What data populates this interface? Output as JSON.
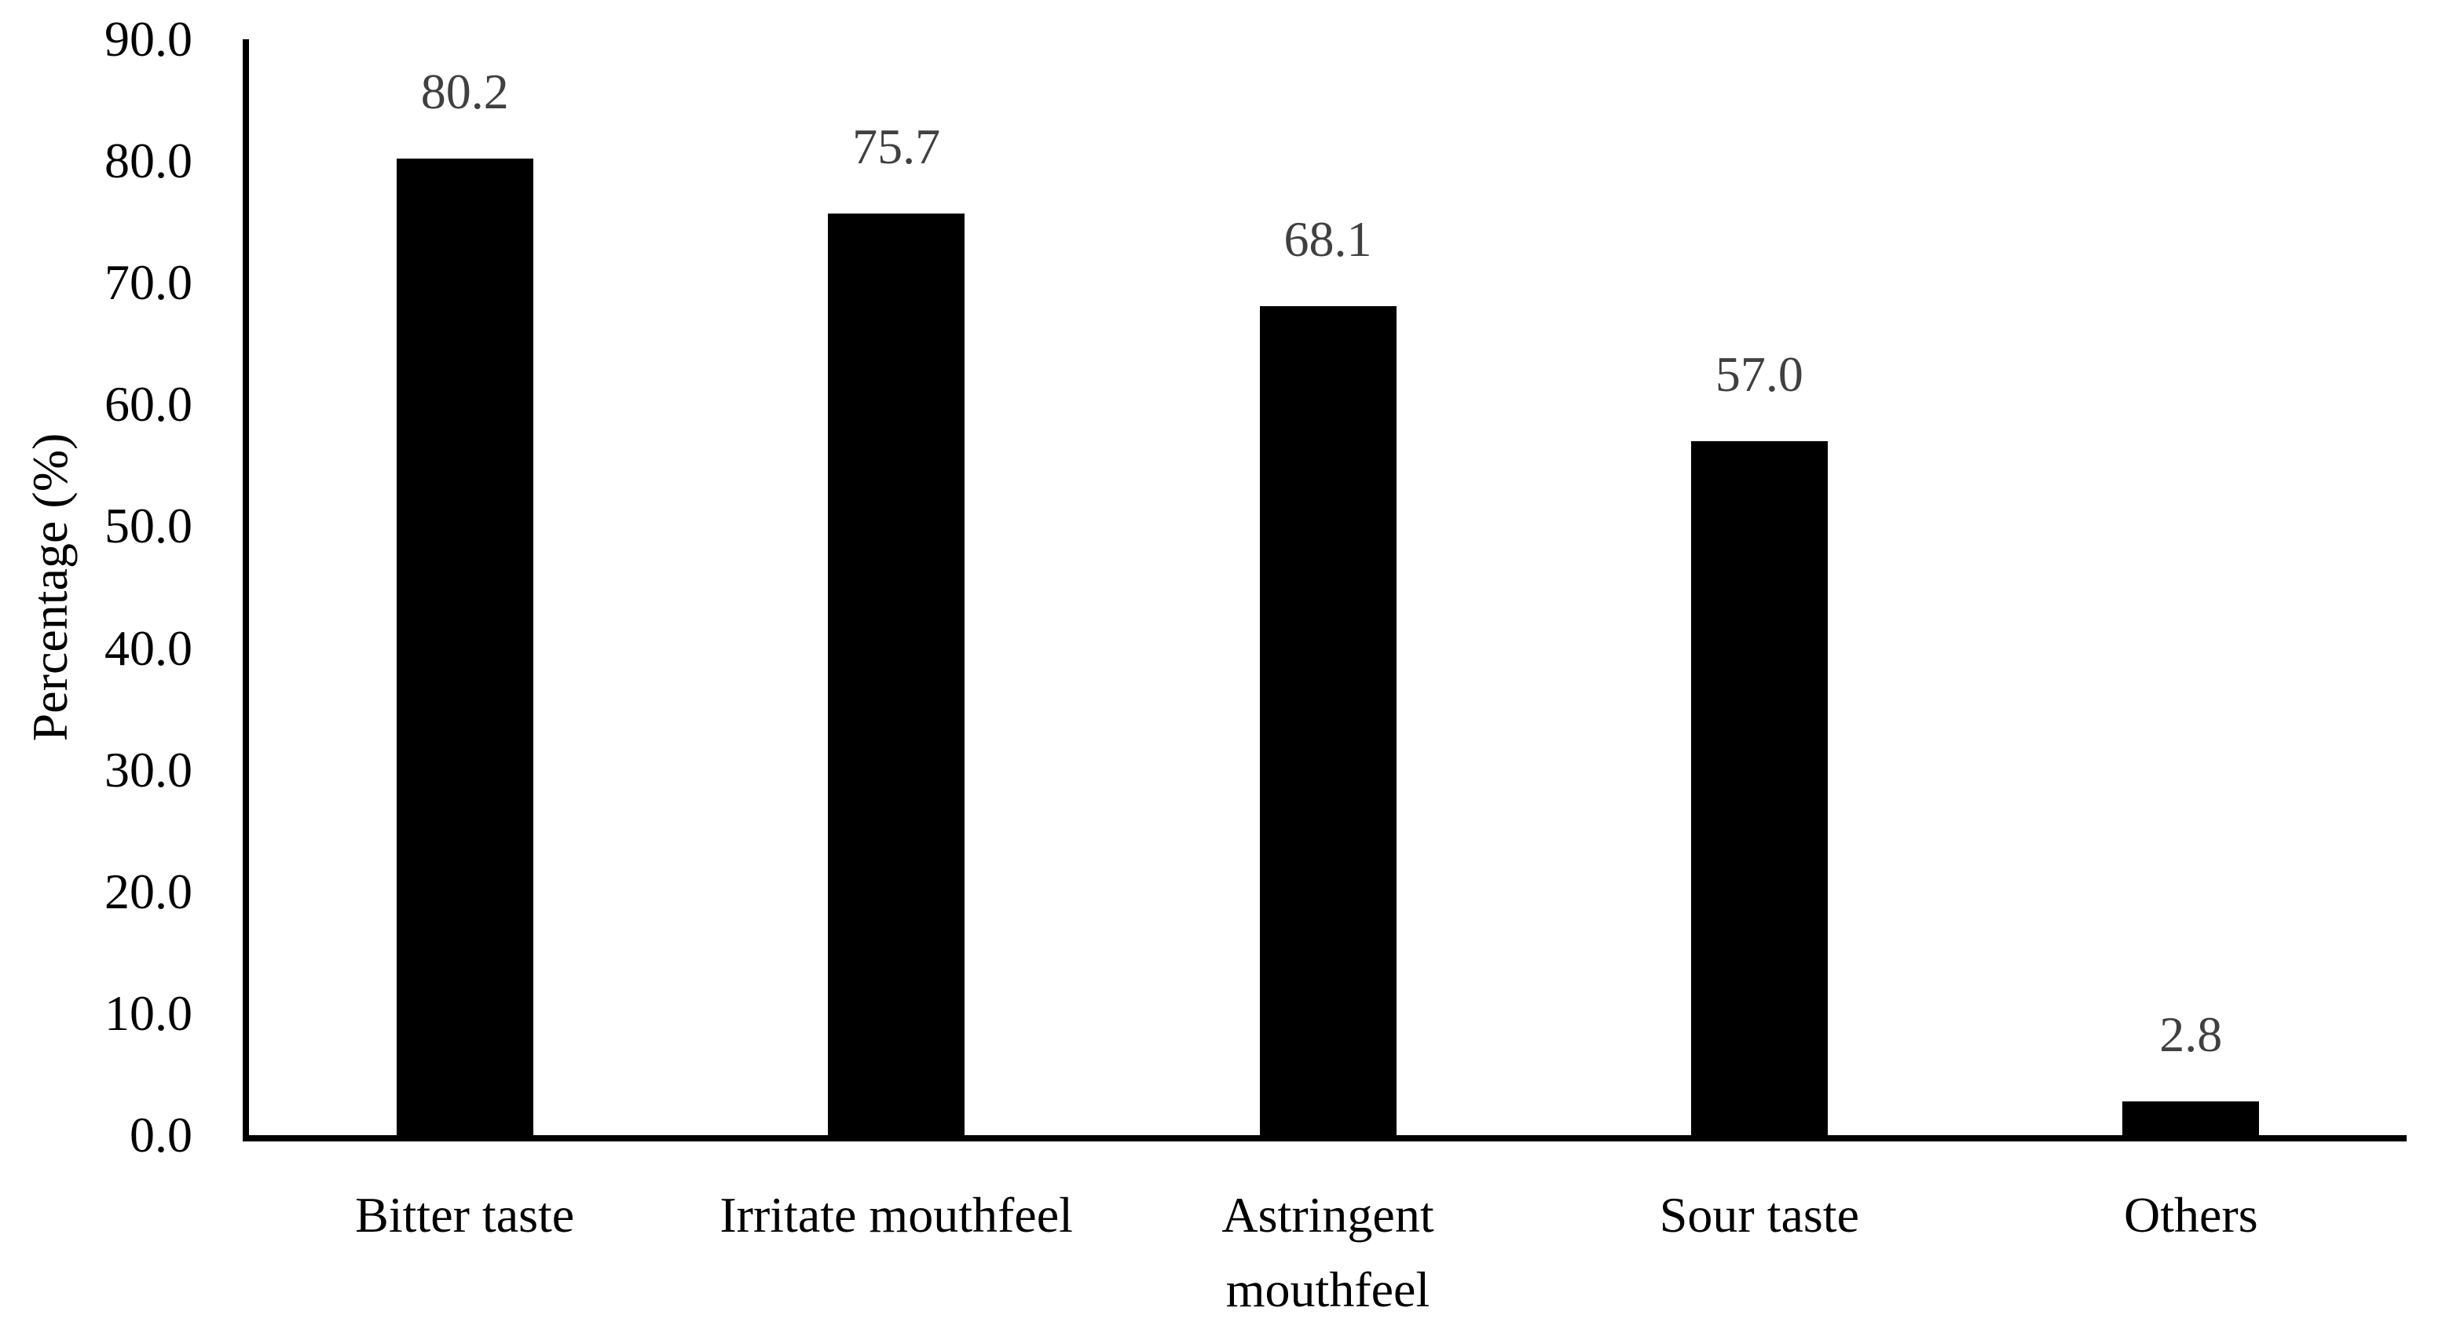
{
  "chart_data": {
    "type": "bar",
    "title": "",
    "xlabel": "",
    "ylabel": "Percentage (%)",
    "categories": [
      "Bitter taste",
      "Irritate mouthfeel",
      "Astringent\nmouthfeel",
      "Sour taste",
      "Others"
    ],
    "values": [
      80.2,
      75.7,
      68.1,
      57.0,
      2.8
    ],
    "data_labels": [
      "80.2",
      "75.7",
      "68.1",
      "57.0",
      "2.8"
    ],
    "ylim": [
      0,
      90
    ],
    "ytick_step": 10,
    "ytick_labels_top_to_bottom": [
      "90.0",
      "80.0",
      "70.0",
      "60.0",
      "50.0",
      "40.0",
      "30.0",
      "20.0",
      "10.0",
      "0.0"
    ],
    "grid": false,
    "legend": null,
    "colors": {
      "bar": "#000000",
      "data_label": "#404040",
      "axis_line": "#000000",
      "tick_text": "#000000",
      "category_text": "#000000",
      "background": "#ffffff"
    }
  }
}
